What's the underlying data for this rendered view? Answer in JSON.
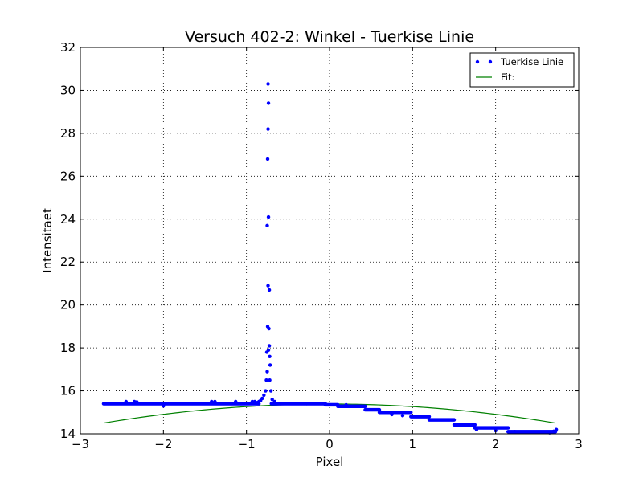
{
  "chart_data": {
    "type": "scatter",
    "title": "Versuch 402-2: Winkel - Tuerkise Linie",
    "xlabel": "Pixel",
    "ylabel": "Intensitaet",
    "xlim": [
      -3,
      3
    ],
    "ylim": [
      14,
      32
    ],
    "xticks": [
      -3,
      -2,
      -1,
      0,
      1,
      2,
      3
    ],
    "yticks": [
      14,
      16,
      18,
      20,
      22,
      24,
      26,
      28,
      30,
      32
    ],
    "xtick_labels": [
      "−3",
      "−2",
      "−1",
      "0",
      "1",
      "2",
      "3"
    ],
    "ytick_labels": [
      "14",
      "16",
      "18",
      "20",
      "22",
      "24",
      "26",
      "28",
      "30",
      "32"
    ],
    "grid": true,
    "legend_position": "top-right",
    "series": [
      {
        "name": "Tuerkise Linie",
        "kind": "scatter",
        "color": "#0000ff",
        "x_range": [
          -2.72,
          2.72
        ],
        "steps": [
          [
            -2.72,
            -0.85,
            15.4
          ],
          [
            -0.7,
            -0.05,
            15.4
          ],
          [
            -0.05,
            0.1,
            15.35
          ],
          [
            0.1,
            0.43,
            15.28
          ],
          [
            0.43,
            0.6,
            15.12
          ],
          [
            0.6,
            0.98,
            15.0
          ],
          [
            0.98,
            1.2,
            14.8
          ],
          [
            1.2,
            1.5,
            14.65
          ],
          [
            1.5,
            1.75,
            14.42
          ],
          [
            1.75,
            2.15,
            14.28
          ],
          [
            2.15,
            2.72,
            14.1
          ]
        ],
        "peak_points": [
          [
            -0.87,
            15.45
          ],
          [
            -0.85,
            15.5
          ],
          [
            -0.83,
            15.55
          ],
          [
            -0.81,
            15.65
          ],
          [
            -0.79,
            15.8
          ],
          [
            -0.77,
            16.0
          ],
          [
            -0.76,
            16.5
          ],
          [
            -0.75,
            16.9
          ],
          [
            -0.755,
            17.8
          ],
          [
            -0.735,
            17.9
          ],
          [
            -0.725,
            18.1
          ],
          [
            -0.72,
            17.6
          ],
          [
            -0.715,
            17.2
          ],
          [
            -0.745,
            19.0
          ],
          [
            -0.73,
            18.9
          ],
          [
            -0.74,
            20.9
          ],
          [
            -0.725,
            20.7
          ],
          [
            -0.75,
            23.7
          ],
          [
            -0.735,
            24.1
          ],
          [
            -0.745,
            26.8
          ],
          [
            -0.74,
            28.2
          ],
          [
            -0.735,
            29.4
          ],
          [
            -0.74,
            30.3
          ],
          [
            -0.72,
            16.5
          ],
          [
            -0.705,
            16.0
          ],
          [
            -0.69,
            15.6
          ],
          [
            -0.66,
            15.5
          ]
        ],
        "outliers": [
          [
            -2.45,
            15.5
          ],
          [
            -2.35,
            15.5
          ],
          [
            -2.32,
            15.48
          ],
          [
            -2.0,
            15.3
          ],
          [
            -1.42,
            15.5
          ],
          [
            -1.38,
            15.5
          ],
          [
            -1.13,
            15.5
          ],
          [
            -0.93,
            15.5
          ],
          [
            -0.9,
            15.5
          ],
          [
            0.2,
            15.35
          ],
          [
            0.75,
            14.9
          ],
          [
            0.88,
            14.85
          ],
          [
            1.77,
            14.2
          ],
          [
            2.0,
            14.15
          ],
          [
            2.23,
            14.1
          ],
          [
            2.65,
            14.05
          ],
          [
            2.7,
            14.12
          ],
          [
            2.73,
            14.2
          ]
        ]
      },
      {
        "name": "Fit:",
        "kind": "line",
        "color": "#008000",
        "curve": "quadratic",
        "points": [
          [
            -2.72,
            14.5
          ],
          [
            -0.55,
            15.35
          ],
          [
            2.72,
            14.5
          ]
        ]
      }
    ]
  }
}
